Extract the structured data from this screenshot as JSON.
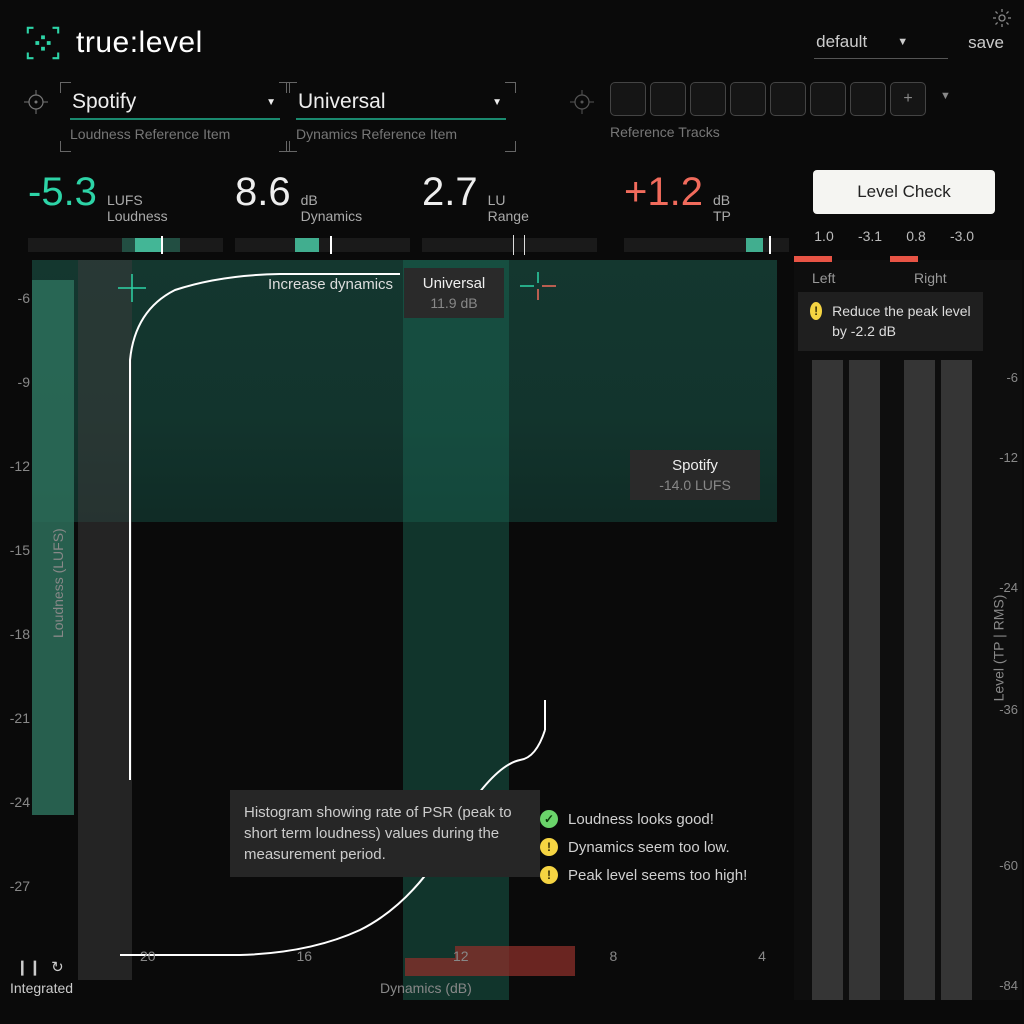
{
  "app": {
    "name": "true:level"
  },
  "topbar": {
    "preset": "default",
    "save": "save"
  },
  "references": {
    "loudness": {
      "value": "Spotify",
      "sublabel": "Loudness Reference Item"
    },
    "dynamics": {
      "value": "Universal",
      "sublabel": "Dynamics Reference Item"
    },
    "tracks_label": "Reference Tracks",
    "add_slot": "+"
  },
  "metrics": {
    "loudness": {
      "value": "-5.3",
      "unit": "LUFS",
      "name": "Loudness",
      "color": "#2dd4a7"
    },
    "dynamics": {
      "value": "8.6",
      "unit": "dB",
      "name": "Dynamics",
      "color": "#eeeeee"
    },
    "range": {
      "value": "2.7",
      "unit": "LU",
      "name": "Range",
      "color": "#eeeeee"
    },
    "tp": {
      "value": "+1.2",
      "unit": "dB",
      "name": "TP",
      "color": "#f16b5c"
    }
  },
  "level_check": {
    "button": "Level Check",
    "values": [
      "1.0",
      "-3.1",
      "0.8",
      "-3.0"
    ]
  },
  "plot": {
    "hint": "Increase dynamics",
    "universal_tag": {
      "title": "Universal",
      "sub": "11.9 dB"
    },
    "spotify_tag": {
      "title": "Spotify",
      "sub": "-14.0 LUFS"
    },
    "y_label": "Loudness (LUFS)",
    "x_label": "Dynamics (dB)",
    "y_ticks": [
      "-6",
      "-9",
      "-12",
      "-15",
      "-18",
      "-21",
      "-24",
      "-27"
    ],
    "x_ticks": [
      "20",
      "16",
      "12",
      "8",
      "4"
    ],
    "tooltip": "Histogram showing rate of PSR (peak to short term loudness) values during the measurement period.",
    "status": [
      {
        "icon": "ok",
        "text": "Loudness looks good!"
      },
      {
        "icon": "warn",
        "text": "Dynamics seem too low."
      },
      {
        "icon": "warn",
        "text": "Peak level seems too high!"
      }
    ],
    "colors": {
      "green_region": "#1a5548",
      "green_band": "#1a6b57",
      "bar_green": "#2d6e5b",
      "bar_gray": "#3a3a3a",
      "curve": "#ffffff",
      "red": "#8b2f2a",
      "crosshair_green": "#2dd4a7",
      "crosshair_red": "#f16b5c"
    }
  },
  "meters": {
    "left": "Left",
    "right": "Right",
    "warning": "Reduce the peak level by -2.2 dB",
    "scale": [
      "-6",
      "-12",
      "-24",
      "-36",
      "-60",
      "-84"
    ],
    "scale_positions": [
      20,
      100,
      230,
      352,
      508,
      628
    ],
    "y_label": "Level (TP | RMS)",
    "accent_color": "#e85445"
  },
  "footer": {
    "mode": "Integrated"
  }
}
